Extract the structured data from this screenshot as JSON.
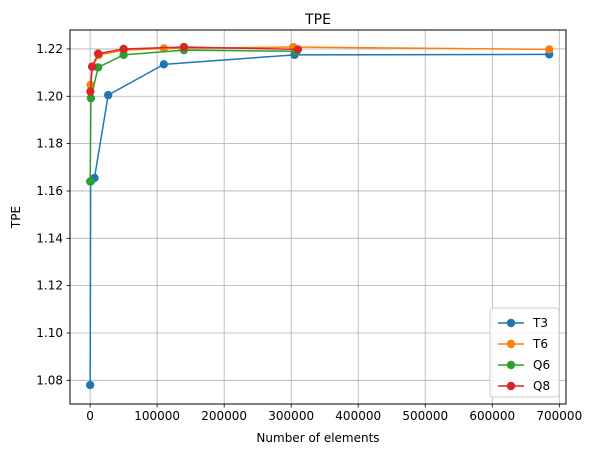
{
  "chart_data": {
    "type": "line",
    "title": "TPE",
    "xlabel": "Number of elements",
    "ylabel": "TPE",
    "xlim": [
      -30000,
      710000
    ],
    "ylim": [
      1.07,
      1.228
    ],
    "xticks": [
      0,
      100000,
      200000,
      300000,
      400000,
      500000,
      600000,
      700000
    ],
    "xtick_labels": [
      "0",
      "100000",
      "200000",
      "300000",
      "400000",
      "500000",
      "600000",
      "700000"
    ],
    "yticks": [
      1.08,
      1.1,
      1.12,
      1.14,
      1.16,
      1.18,
      1.2,
      1.22
    ],
    "ytick_labels": [
      "1.08",
      "1.10",
      "1.12",
      "1.14",
      "1.16",
      "1.18",
      "1.20",
      "1.22"
    ],
    "grid": true,
    "legend_position": "lower-right",
    "series": [
      {
        "name": "T3",
        "color": "#1f77b4",
        "x": [
          98,
          800,
          6500,
          27000,
          110000,
          305000,
          685000
        ],
        "y": [
          1.078,
          1.164,
          1.1655,
          1.2005,
          1.2135,
          1.2175,
          1.2177
        ]
      },
      {
        "name": "T6",
        "color": "#ff7f0e",
        "x": [
          700,
          3500,
          13000,
          50000,
          110000,
          303000,
          685000
        ],
        "y": [
          1.2048,
          1.2125,
          1.2175,
          1.2195,
          1.2202,
          1.2208,
          1.2198
        ]
      },
      {
        "name": "Q6",
        "color": "#2ca02c",
        "x": [
          150,
          1200,
          12000,
          50000,
          140000,
          308000
        ],
        "y": [
          1.164,
          1.1992,
          1.2122,
          1.2175,
          1.2195,
          1.219
        ]
      },
      {
        "name": "Q8",
        "color": "#d62728",
        "x": [
          400,
          3000,
          12000,
          50000,
          140000,
          310000
        ],
        "y": [
          1.202,
          1.2125,
          1.218,
          1.22,
          1.2208,
          1.2198
        ]
      }
    ]
  }
}
